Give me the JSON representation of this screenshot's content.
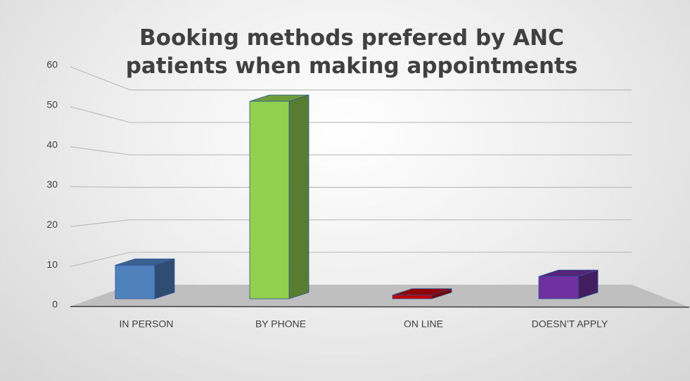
{
  "chart_data": {
    "type": "bar3d",
    "title": "Booking methods prefered by ANC patients when making appointments",
    "categories": [
      "IN PERSON",
      "BY PHONE",
      "ON LINE",
      "DOESN’T APPLY"
    ],
    "values": [
      9,
      53,
      1,
      6
    ],
    "colors": [
      "#4f81bd",
      "#92d050",
      "#c00000",
      "#7030a0"
    ],
    "ylim": [
      0,
      60
    ],
    "yticks": [
      0,
      10,
      20,
      30,
      40,
      50,
      60
    ],
    "grid": true
  }
}
